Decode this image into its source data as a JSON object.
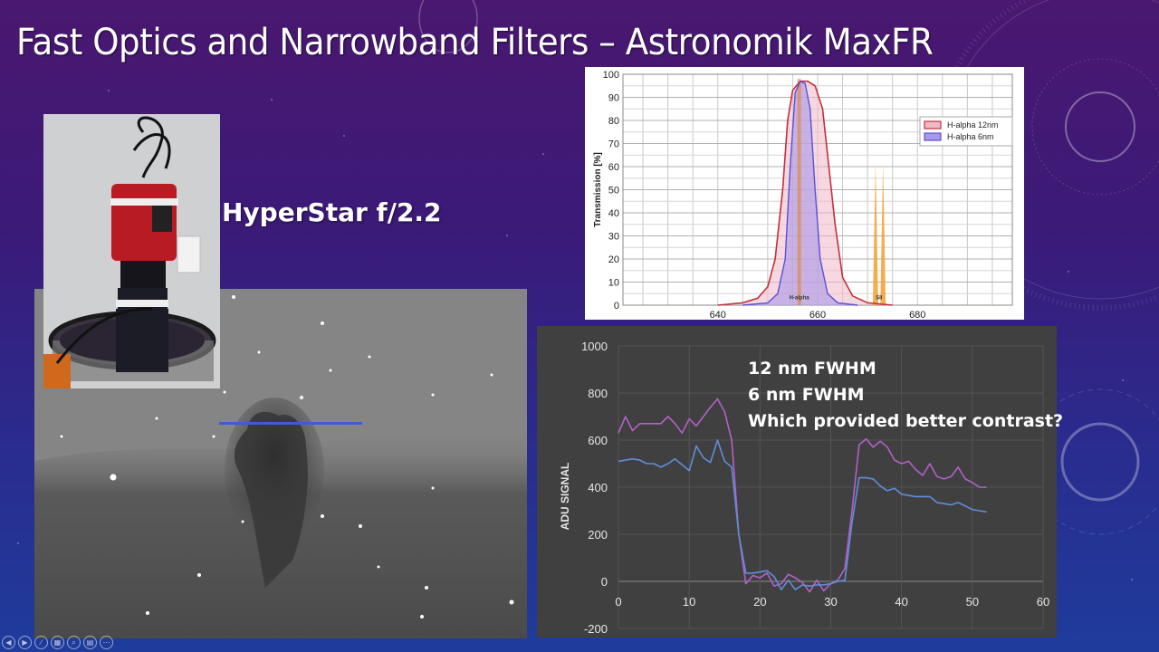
{
  "slide": {
    "title": "Fast Optics and Narrowband Filters – Astronomik MaxFR",
    "subtitle": "HyperStar f/2.2",
    "colors": {
      "bg_top": "#4a1870",
      "bg_bottom": "#1e3c9c",
      "profile_line": "#3d5cd6"
    }
  },
  "images": {
    "camera_photo": {
      "label": "Camera on HyperStar mount"
    },
    "nebula_photo": {
      "label": "Horsehead Nebula H-alpha image with profile line"
    }
  },
  "adu_annotations": {
    "line1": "12 nm FWHM",
    "line2": "6 nm FWHM",
    "line3": "Which provided better contrast?"
  },
  "navbar": {
    "buttons": [
      {
        "name": "previous-slide-button",
        "glyph": "◀"
      },
      {
        "name": "next-slide-button",
        "glyph": "▶"
      },
      {
        "name": "pen-button",
        "glyph": "∕"
      },
      {
        "name": "slides-grid-button",
        "glyph": "▦"
      },
      {
        "name": "zoom-button",
        "glyph": "⌕"
      },
      {
        "name": "subtitles-button",
        "glyph": "▤"
      },
      {
        "name": "more-options-button",
        "glyph": "⋯"
      }
    ]
  },
  "chart_data": [
    {
      "type": "area",
      "title": "",
      "xlabel": "",
      "ylabel": "Transmission [%]",
      "xlim": [
        621,
        699
      ],
      "ylim": [
        0,
        100
      ],
      "x_ticks": [
        640,
        660,
        680
      ],
      "y_ticks": [
        0,
        10,
        20,
        30,
        40,
        50,
        60,
        70,
        80,
        90,
        100
      ],
      "grid": true,
      "legend": {
        "position": "upper right",
        "entries": [
          "H-alpha 12nm",
          "H-alpha 6nm"
        ]
      },
      "annotations": [
        "H-alpha",
        "SII"
      ],
      "series": [
        {
          "name": "H-alpha 12nm",
          "color": "#c0303c",
          "fill": "#f0b8c8",
          "x": [
            640,
            645,
            648,
            650,
            651.5,
            653,
            654,
            655,
            656.5,
            658,
            659.5,
            661,
            662,
            663.5,
            665,
            667,
            670,
            675
          ],
          "values": [
            0,
            1,
            3,
            8,
            20,
            50,
            80,
            93,
            97,
            97,
            95,
            85,
            65,
            35,
            12,
            4,
            1,
            0
          ]
        },
        {
          "name": "H-alpha 6nm",
          "color": "#5a50d8",
          "fill": "#a898e8",
          "x": [
            645,
            650,
            652,
            653.5,
            654.5,
            655.5,
            656.5,
            657.5,
            658.5,
            659.5,
            660.5,
            662,
            664,
            668
          ],
          "values": [
            0,
            1,
            5,
            20,
            60,
            92,
            97,
            96,
            85,
            50,
            20,
            5,
            1,
            0
          ]
        },
        {
          "name": "H-alpha line",
          "color": "#e08020",
          "x": [
            656.3
          ],
          "values": [
            98
          ]
        },
        {
          "name": "SII lines",
          "color": "#f0a030",
          "x": [
            671.6,
            673.1
          ],
          "values": [
            61,
            61
          ]
        }
      ]
    },
    {
      "type": "line",
      "title": "",
      "xlabel": "",
      "ylabel": "ADU SIGNAL",
      "xlim": [
        0,
        60
      ],
      "ylim": [
        -200,
        1000
      ],
      "x_ticks": [
        0,
        10,
        20,
        30,
        40,
        50,
        60
      ],
      "y_ticks": [
        -200,
        0,
        200,
        400,
        600,
        800,
        1000
      ],
      "grid": true,
      "legend": null,
      "series": [
        {
          "name": "12 nm FWHM",
          "color": "#b460c8",
          "x": [
            0,
            1,
            2,
            3,
            4,
            5,
            6,
            7,
            8,
            9,
            10,
            11,
            12,
            13,
            14,
            15,
            16,
            17,
            18,
            19,
            20,
            21,
            22,
            23,
            24,
            25,
            26,
            27,
            28,
            29,
            30,
            31,
            32,
            33,
            34,
            35,
            36,
            37,
            38,
            39,
            40,
            41,
            42,
            43,
            44,
            45,
            46,
            47,
            48,
            49,
            50,
            51,
            52
          ],
          "values": [
            630,
            700,
            640,
            670,
            670,
            670,
            670,
            700,
            670,
            630,
            690,
            660,
            700,
            740,
            775,
            720,
            600,
            200,
            -10,
            25,
            15,
            35,
            -20,
            -10,
            30,
            15,
            -5,
            -45,
            5,
            -40,
            -10,
            5,
            55,
            300,
            580,
            605,
            570,
            595,
            570,
            515,
            500,
            510,
            475,
            450,
            500,
            445,
            435,
            445,
            485,
            435,
            420,
            400,
            400
          ]
        },
        {
          "name": "6 nm FWHM",
          "color": "#5e8ed8",
          "x": [
            0,
            1,
            2,
            3,
            4,
            5,
            6,
            7,
            8,
            9,
            10,
            11,
            12,
            13,
            14,
            15,
            16,
            17,
            18,
            19,
            20,
            21,
            22,
            23,
            24,
            25,
            26,
            27,
            28,
            29,
            30,
            31,
            32,
            33,
            34,
            35,
            36,
            37,
            38,
            39,
            40,
            41,
            42,
            43,
            44,
            45,
            46,
            47,
            48,
            49,
            50,
            51,
            52
          ],
          "values": [
            510,
            515,
            520,
            515,
            500,
            500,
            485,
            500,
            520,
            495,
            470,
            575,
            525,
            505,
            600,
            510,
            485,
            200,
            35,
            35,
            40,
            45,
            20,
            -35,
            5,
            -35,
            -15,
            -20,
            -15,
            -15,
            -10,
            0,
            5,
            250,
            440,
            440,
            435,
            405,
            385,
            395,
            370,
            365,
            360,
            360,
            360,
            335,
            330,
            325,
            335,
            320,
            305,
            300,
            295
          ]
        }
      ]
    }
  ]
}
